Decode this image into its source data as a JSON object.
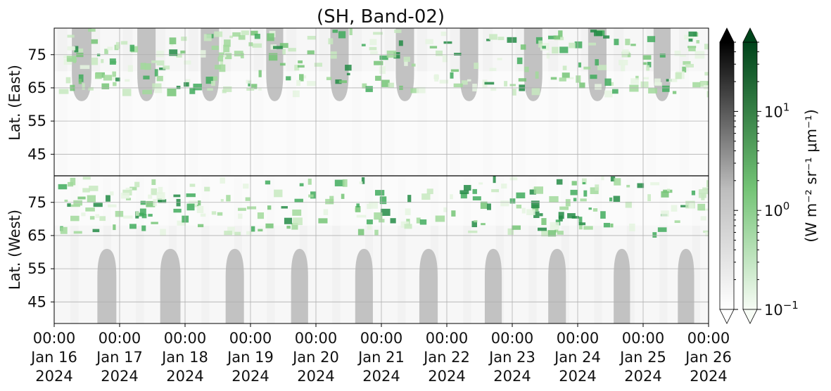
{
  "chart_data": {
    "type": "heatmap",
    "title": "(SH, Band-02)",
    "x_axis": {
      "start": "2024-01-16 00:00",
      "end": "2024-01-26 00:00",
      "ticks": [
        {
          "time": "00:00",
          "day": "Jan 16",
          "year": "2024"
        },
        {
          "time": "00:00",
          "day": "Jan 17",
          "year": "2024"
        },
        {
          "time": "00:00",
          "day": "Jan 18",
          "year": "2024"
        },
        {
          "time": "00:00",
          "day": "Jan 19",
          "year": "2024"
        },
        {
          "time": "00:00",
          "day": "Jan 20",
          "year": "2024"
        },
        {
          "time": "00:00",
          "day": "Jan 21",
          "year": "2024"
        },
        {
          "time": "00:00",
          "day": "Jan 22",
          "year": "2024"
        },
        {
          "time": "00:00",
          "day": "Jan 23",
          "year": "2024"
        },
        {
          "time": "00:00",
          "day": "Jan 24",
          "year": "2024"
        },
        {
          "time": "00:00",
          "day": "Jan 25",
          "year": "2024"
        },
        {
          "time": "00:00",
          "day": "Jan 26",
          "year": "2024"
        }
      ]
    },
    "panels": [
      {
        "ylabel": "Lat. (East)",
        "yticks": [
          45,
          55,
          65,
          75
        ],
        "ylim": [
          38.5,
          83
        ]
      },
      {
        "ylabel": "Lat. (West)",
        "yticks": [
          75,
          65,
          55,
          45
        ],
        "ylim": [
          83,
          38.5
        ]
      }
    ],
    "colorbars": [
      {
        "name": "gray",
        "colors": [
          "#ffffff",
          "#000000"
        ],
        "extend": "both"
      },
      {
        "name": "green",
        "colors": [
          "#f7fcf5",
          "#00441b"
        ],
        "extend": "both"
      }
    ],
    "colorbar_scale": "log",
    "colorbar_range": [
      0.1,
      50
    ],
    "colorbar_ticks": [
      {
        "value": 0.1,
        "base": "10",
        "exp": "−1"
      },
      {
        "value": 1,
        "base": "10",
        "exp": "0"
      },
      {
        "value": 10,
        "base": "10",
        "exp": "1"
      }
    ],
    "colorbar_label": "(W m⁻² sr⁻¹ μm⁻¹)",
    "sunlit_blocks": {
      "east": [
        {
          "start": 0.27,
          "end": 0.57
        },
        {
          "start": 1.27,
          "end": 1.55
        },
        {
          "start": 2.24,
          "end": 2.52
        },
        {
          "start": 3.24,
          "end": 3.5
        },
        {
          "start": 4.22,
          "end": 4.5
        },
        {
          "start": 5.22,
          "end": 5.5
        },
        {
          "start": 6.2,
          "end": 6.48
        },
        {
          "start": 7.18,
          "end": 7.46
        },
        {
          "start": 8.16,
          "end": 8.44
        },
        {
          "start": 9.16,
          "end": 9.42
        }
      ],
      "west": [
        {
          "start": 0.66,
          "end": 0.95
        },
        {
          "start": 1.62,
          "end": 1.93
        },
        {
          "start": 2.62,
          "end": 2.9
        },
        {
          "start": 3.62,
          "end": 3.88
        },
        {
          "start": 4.6,
          "end": 4.87
        },
        {
          "start": 5.58,
          "end": 5.86
        },
        {
          "start": 6.58,
          "end": 6.84
        },
        {
          "start": 7.55,
          "end": 7.82
        },
        {
          "start": 8.55,
          "end": 8.8
        },
        {
          "start": 9.53,
          "end": 9.78
        }
      ],
      "edge_lat": 61,
      "intensity": "gray"
    },
    "green_activity": {
      "description_band_lat": [
        63,
        83
      ],
      "peaks_days": [
        0.15,
        0.6,
        1.5,
        2.0,
        3.3,
        3.8,
        4.6,
        5.1,
        5.9,
        6.4,
        7.2,
        7.6,
        7.9,
        8.6,
        9.1,
        9.4
      ]
    }
  }
}
